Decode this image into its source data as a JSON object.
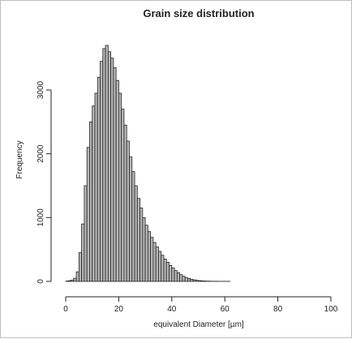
{
  "chart_data": {
    "type": "bar",
    "title": "Grain size distribution",
    "xlabel": "equivalent Diameter [µm]",
    "ylabel": "Frequency",
    "xlim": [
      0,
      100
    ],
    "ylim": [
      0,
      3800
    ],
    "x_ticks": [
      0,
      20,
      40,
      60,
      80,
      100
    ],
    "y_ticks": [
      0,
      1000,
      2000,
      3000
    ],
    "grid": false,
    "bin_width": 1,
    "x": [
      1,
      2,
      3,
      4,
      5,
      6,
      7,
      8,
      9,
      10,
      11,
      12,
      13,
      14,
      15,
      16,
      17,
      18,
      19,
      20,
      21,
      22,
      23,
      24,
      25,
      26,
      27,
      28,
      29,
      30,
      31,
      32,
      33,
      34,
      35,
      36,
      37,
      38,
      39,
      40,
      41,
      42,
      43,
      44,
      45,
      46,
      47,
      48,
      49,
      50,
      51,
      52,
      53,
      54,
      55,
      56,
      57,
      58,
      59,
      60,
      61,
      62
    ],
    "values": [
      5,
      10,
      20,
      50,
      150,
      450,
      900,
      1500,
      2100,
      2500,
      2750,
      2950,
      3200,
      3450,
      3650,
      3700,
      3600,
      3500,
      3350,
      3150,
      2950,
      2700,
      2450,
      2200,
      1950,
      1720,
      1500,
      1300,
      1150,
      1000,
      880,
      780,
      690,
      610,
      540,
      470,
      410,
      350,
      300,
      250,
      210,
      170,
      135,
      105,
      80,
      60,
      45,
      33,
      24,
      17,
      12,
      8,
      6,
      4,
      3,
      2,
      2,
      1,
      1,
      1,
      1,
      1
    ]
  }
}
